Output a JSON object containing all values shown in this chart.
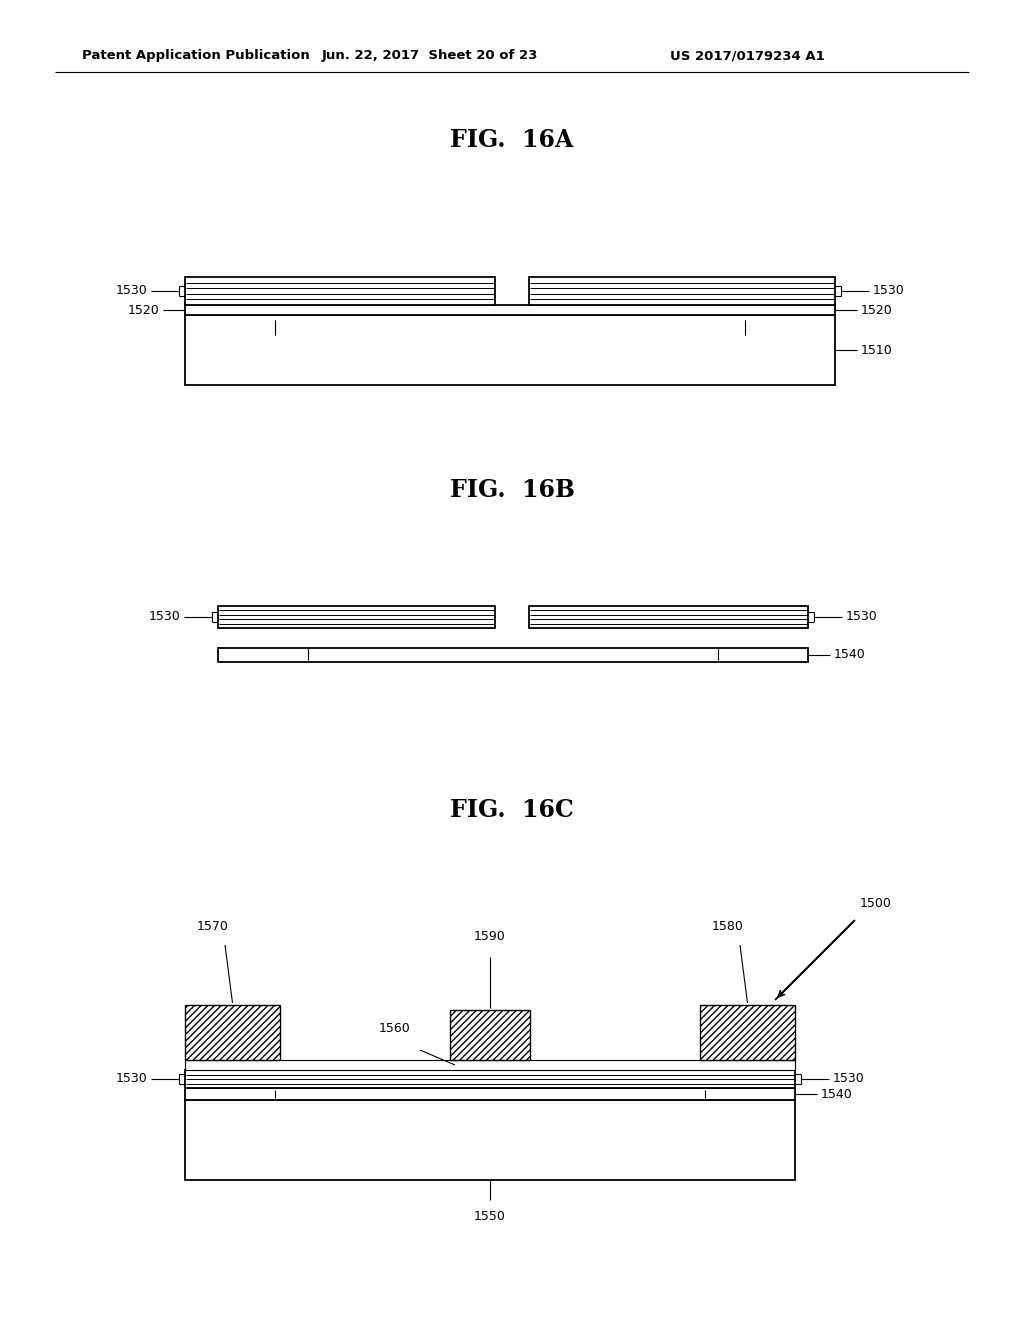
{
  "background_color": "#ffffff",
  "header_left": "Patent Application Publication",
  "header_mid": "Jun. 22, 2017  Sheet 20 of 23",
  "header_right": "US 2017/0179234 A1",
  "fig_titles": [
    "FIG.  16A",
    "FIG.  16B",
    "FIG.  16C"
  ],
  "header_fontsize": 9.5,
  "title_fontsize": 17,
  "label_fontsize": 9
}
